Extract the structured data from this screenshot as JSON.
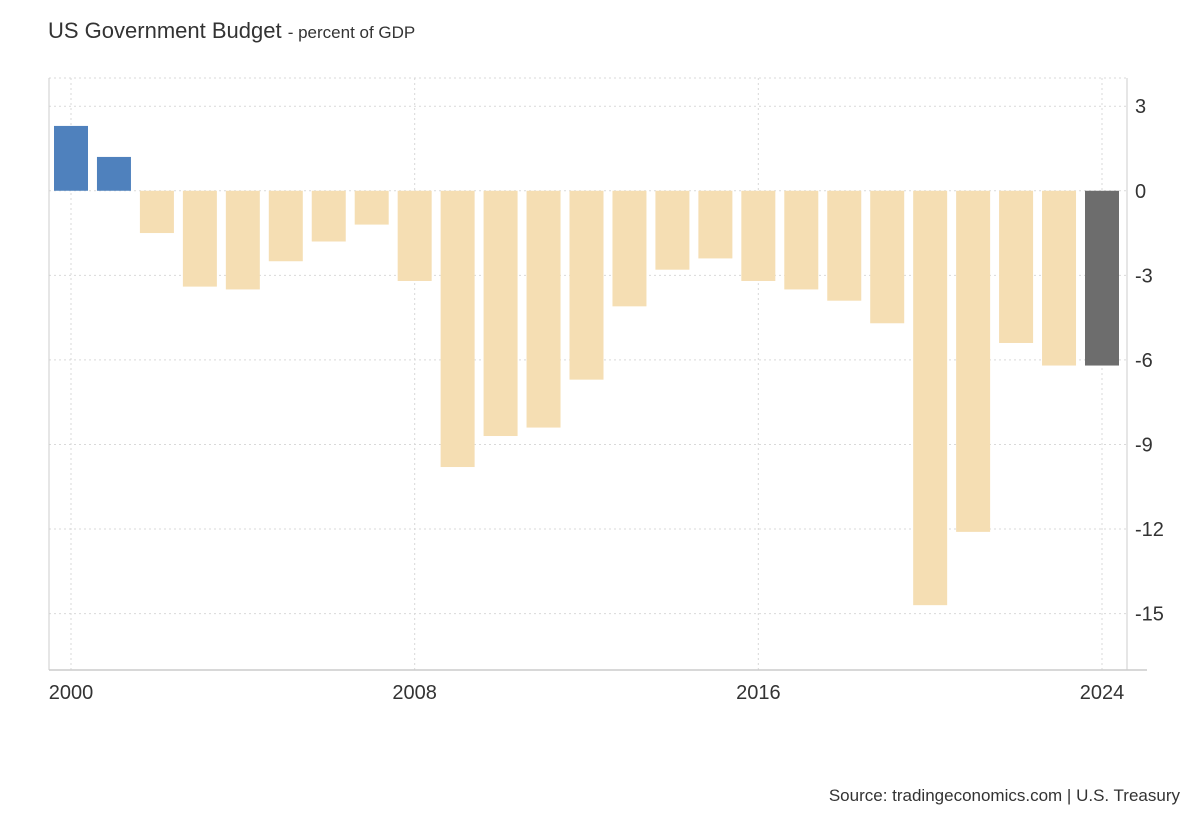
{
  "chart_data": {
    "type": "bar",
    "title": "US Government Budget",
    "subtitle": "- percent of GDP",
    "x": [
      2000,
      2001,
      2002,
      2003,
      2004,
      2005,
      2006,
      2007,
      2008,
      2009,
      2010,
      2011,
      2012,
      2013,
      2014,
      2015,
      2016,
      2017,
      2018,
      2019,
      2020,
      2021,
      2022,
      2023,
      2024
    ],
    "values": [
      2.3,
      1.2,
      -1.5,
      -3.4,
      -3.5,
      -2.5,
      -1.8,
      -1.2,
      -3.2,
      -9.8,
      -8.7,
      -8.4,
      -6.7,
      -4.1,
      -2.8,
      -2.4,
      -3.2,
      -3.5,
      -3.9,
      -4.7,
      -14.7,
      -12.1,
      -5.4,
      -6.2,
      -6.2
    ],
    "x_ticks": [
      "2000",
      "2008",
      "2016",
      "2024"
    ],
    "y_ticks": [
      3,
      0,
      -3,
      -6,
      -9,
      -12,
      -15
    ],
    "ylim": [
      -17,
      4
    ],
    "y_axis_position": "right",
    "xlabel": "",
    "ylabel": "",
    "grid": true,
    "colors": {
      "surplus": "#4f81bd",
      "deficit": "#f5deb3",
      "latest": "#6d6d6d",
      "grid": "#d9d9d9",
      "axis": "#cccccc"
    }
  },
  "source": "Source: tradingeconomics.com | U.S. Treasury"
}
